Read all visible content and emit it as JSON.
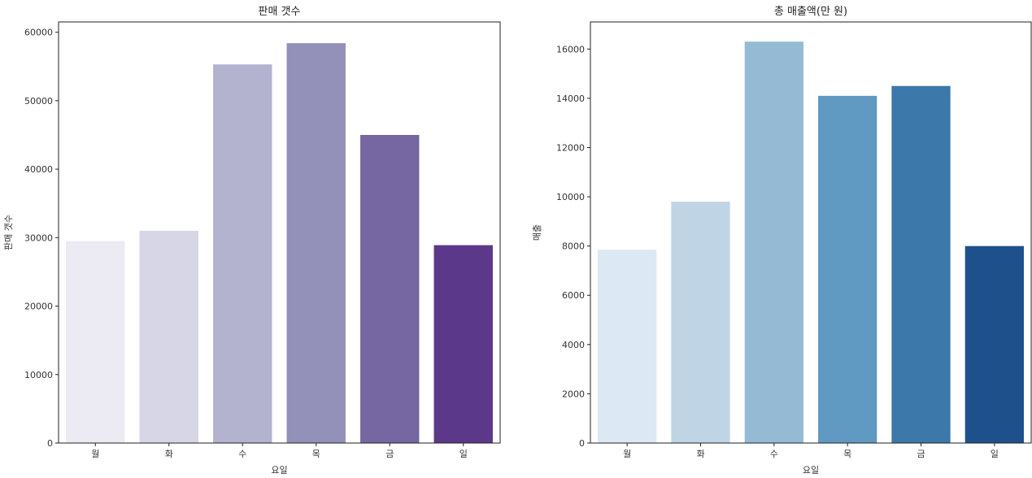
{
  "chart_data": [
    {
      "type": "bar",
      "title": "판매 갯수",
      "xlabel": "요일",
      "ylabel": "판매 갯수",
      "categories": [
        "월",
        "화",
        "수",
        "목",
        "금",
        "일"
      ],
      "values": [
        29500,
        31000,
        55300,
        58400,
        45000,
        28900
      ],
      "ylim": [
        0,
        61500
      ],
      "yticks": [
        0,
        10000,
        20000,
        30000,
        40000,
        50000,
        60000
      ],
      "colors": [
        "#ecebf3",
        "#d6d6e6",
        "#b3b3d0",
        "#9390b9",
        "#7667a3",
        "#5b3889"
      ],
      "grid": false
    },
    {
      "type": "bar",
      "title": "총 매출액(만 원)",
      "xlabel": "요일",
      "ylabel": "매출",
      "categories": [
        "월",
        "화",
        "수",
        "목",
        "금",
        "일"
      ],
      "values": [
        7850,
        9800,
        16300,
        14100,
        14500,
        8000
      ],
      "ylim": [
        0,
        17100
      ],
      "yticks": [
        0,
        2000,
        4000,
        6000,
        8000,
        10000,
        12000,
        14000,
        16000
      ],
      "colors": [
        "#dce8f4",
        "#bfd5e6",
        "#95bbd4",
        "#6099c1",
        "#3c78a9",
        "#1e518c"
      ],
      "grid": false
    }
  ]
}
